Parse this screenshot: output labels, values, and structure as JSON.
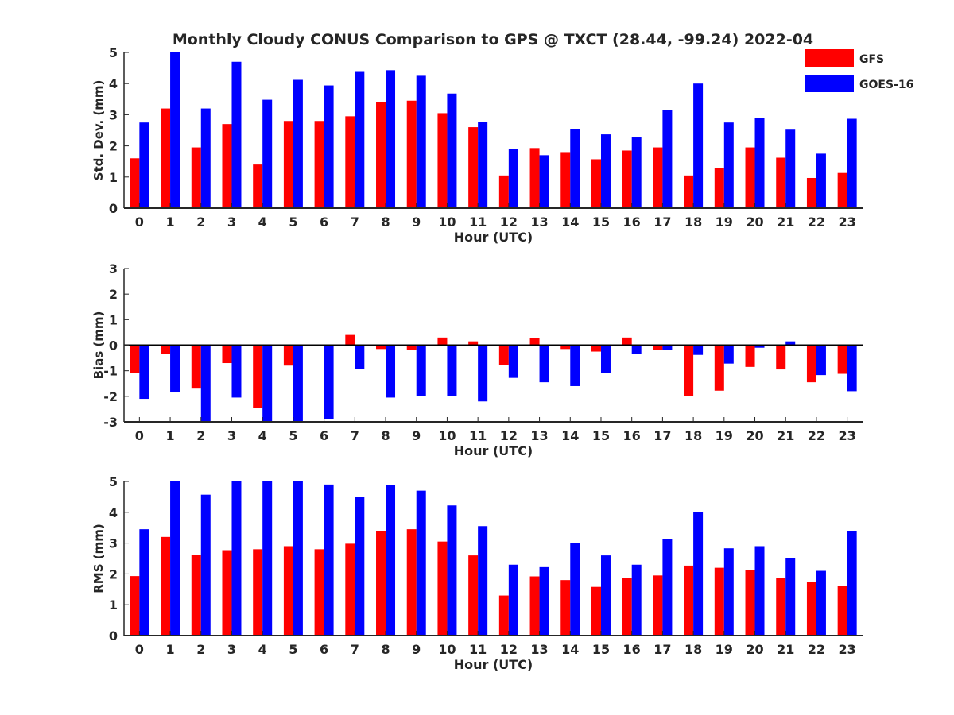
{
  "title": "Monthly Cloudy CONUS Comparison to GPS @ TXCT (28.44, -99.24) 2022-04",
  "legend": {
    "placement": "top-right",
    "entries": [
      {
        "label": "GFS",
        "color": "#ff0000"
      },
      {
        "label": "GOES-16",
        "color": "#0000ff"
      }
    ]
  },
  "chart_data": [
    {
      "type": "bar",
      "title": "Monthly Cloudy CONUS Comparison to GPS @ TXCT (28.44, -99.24) 2022-04",
      "xlabel": "Hour (UTC)",
      "ylabel": "Std. Dev. (mm)",
      "ylim": [
        0,
        5
      ],
      "yticks": [
        0,
        1,
        2,
        3,
        4,
        5
      ],
      "categories": [
        "0",
        "1",
        "2",
        "3",
        "4",
        "5",
        "6",
        "7",
        "8",
        "9",
        "10",
        "11",
        "12",
        "13",
        "14",
        "15",
        "16",
        "17",
        "18",
        "19",
        "20",
        "21",
        "22",
        "23"
      ],
      "series": [
        {
          "name": "GFS",
          "color": "#ff0000",
          "values": [
            1.6,
            3.2,
            1.95,
            2.7,
            1.4,
            2.8,
            2.8,
            2.95,
            3.4,
            3.45,
            3.05,
            2.6,
            1.05,
            1.93,
            1.8,
            1.57,
            1.85,
            1.95,
            1.05,
            1.3,
            1.95,
            1.62,
            0.97,
            1.13
          ]
        },
        {
          "name": "GOES-16",
          "color": "#0000ff",
          "values": [
            2.75,
            5.0,
            3.2,
            4.7,
            3.48,
            4.12,
            3.94,
            4.4,
            4.43,
            4.25,
            3.68,
            2.77,
            1.9,
            1.7,
            2.55,
            2.37,
            2.27,
            3.15,
            4.0,
            2.75,
            2.9,
            2.52,
            1.75,
            2.87
          ]
        }
      ]
    },
    {
      "type": "bar",
      "xlabel": "Hour (UTC)",
      "ylabel": "Bias (mm)",
      "ylim": [
        -3,
        3
      ],
      "yticks": [
        -3,
        -2,
        -1,
        0,
        1,
        2,
        3
      ],
      "categories": [
        "0",
        "1",
        "2",
        "3",
        "4",
        "5",
        "6",
        "7",
        "8",
        "9",
        "10",
        "11",
        "12",
        "13",
        "14",
        "15",
        "16",
        "17",
        "18",
        "19",
        "20",
        "21",
        "22",
        "23"
      ],
      "series": [
        {
          "name": "GFS",
          "color": "#ff0000",
          "values": [
            -1.1,
            -0.35,
            -1.7,
            -0.7,
            -2.45,
            -0.8,
            0.0,
            0.4,
            -0.15,
            -0.18,
            0.3,
            0.15,
            -0.78,
            0.27,
            -0.15,
            -0.25,
            0.3,
            -0.18,
            -2.0,
            -1.78,
            -0.85,
            -0.95,
            -1.45,
            -1.12
          ]
        },
        {
          "name": "GOES-16",
          "color": "#0000ff",
          "values": [
            -2.1,
            -1.85,
            -3.0,
            -2.05,
            -3.0,
            -3.0,
            -2.9,
            -0.93,
            -2.05,
            -2.0,
            -2.0,
            -2.2,
            -1.28,
            -1.45,
            -1.6,
            -1.1,
            -0.33,
            -0.18,
            -0.38,
            -0.72,
            -0.1,
            0.15,
            -1.17,
            -1.8
          ]
        }
      ]
    },
    {
      "type": "bar",
      "xlabel": "Hour (UTC)",
      "ylabel": "RMS (mm)",
      "ylim": [
        0,
        5
      ],
      "yticks": [
        0,
        1,
        2,
        3,
        4,
        5
      ],
      "categories": [
        "0",
        "1",
        "2",
        "3",
        "4",
        "5",
        "6",
        "7",
        "8",
        "9",
        "10",
        "11",
        "12",
        "13",
        "14",
        "15",
        "16",
        "17",
        "18",
        "19",
        "20",
        "21",
        "22",
        "23"
      ],
      "series": [
        {
          "name": "GFS",
          "color": "#ff0000",
          "values": [
            1.93,
            3.2,
            2.62,
            2.77,
            2.8,
            2.9,
            2.8,
            2.98,
            3.4,
            3.45,
            3.05,
            2.6,
            1.3,
            1.92,
            1.8,
            1.58,
            1.87,
            1.95,
            2.27,
            2.2,
            2.12,
            1.87,
            1.75,
            1.62
          ]
        },
        {
          "name": "GOES-16",
          "color": "#0000ff",
          "values": [
            3.45,
            5.0,
            4.57,
            5.0,
            5.0,
            5.0,
            4.9,
            4.5,
            4.88,
            4.7,
            4.22,
            3.55,
            2.3,
            2.22,
            3.0,
            2.6,
            2.3,
            3.13,
            4.0,
            2.83,
            2.9,
            2.52,
            2.1,
            3.4
          ]
        }
      ]
    }
  ]
}
